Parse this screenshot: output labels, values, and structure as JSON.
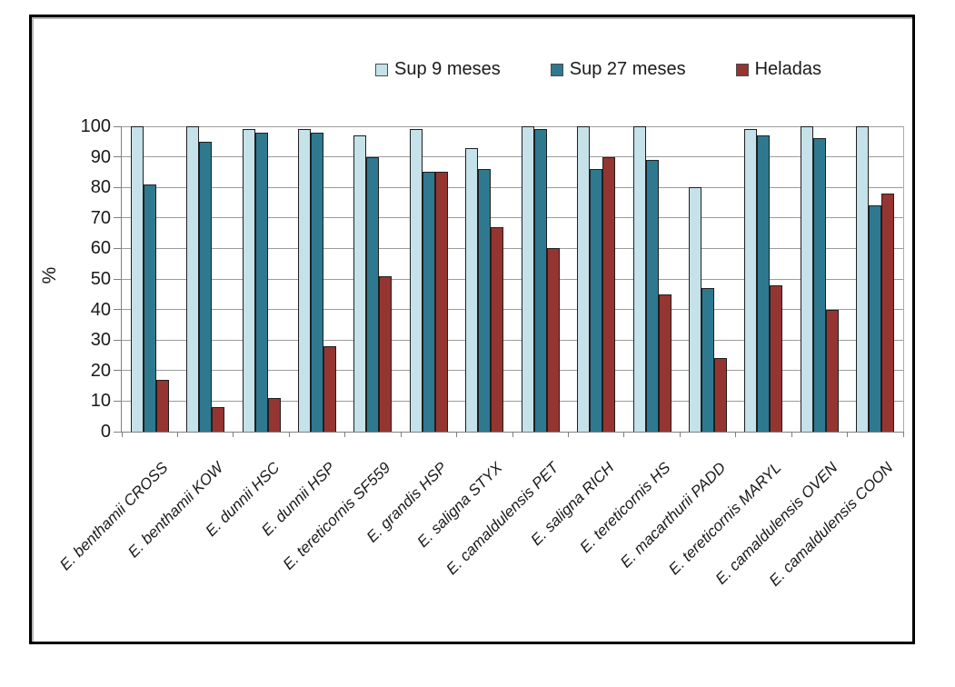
{
  "chart_data": {
    "type": "bar",
    "title": "",
    "xlabel": "",
    "ylabel": "%",
    "ylim": [
      0,
      100
    ],
    "yticks": [
      0,
      10,
      20,
      30,
      40,
      50,
      60,
      70,
      80,
      90,
      100
    ],
    "grid": true,
    "legend_position": "top",
    "categories": [
      "E. benthamii CROSS",
      "E. benthamii KOW",
      "E. dunnii HSC",
      "E. dunnii HSP",
      "E. tereticornis SF559",
      "E. grandis HSP",
      "E. saligna STYX",
      "E. camaldulensis PET",
      "E. saligna RICH",
      "E. tereticornis HS",
      "E. macarthurii PADD",
      "E. tereticornis MARYL",
      "E. camaldulensis OVEN",
      "E. camaldulensis COON"
    ],
    "series": [
      {
        "name": "Sup 9 meses",
        "color": "#c5e1e9",
        "values": [
          100,
          100,
          99,
          99,
          97,
          99,
          93,
          100,
          100,
          100,
          80,
          99,
          100,
          100
        ]
      },
      {
        "name": "Sup 27 meses",
        "color": "#2e798f",
        "values": [
          81,
          95,
          98,
          98,
          90,
          85,
          86,
          99,
          86,
          89,
          47,
          97,
          96,
          74
        ]
      },
      {
        "name": "Heladas",
        "color": "#953531",
        "values": [
          17,
          8,
          11,
          28,
          51,
          85,
          67,
          60,
          90,
          45,
          24,
          48,
          40,
          78
        ]
      }
    ]
  },
  "colors": {
    "bar_border": "#1f1f1f",
    "gridline": "#9c9c9c",
    "axis": "#7f7f7f",
    "frame_border": "#000000",
    "text": "#1a1a1a",
    "background": "#ffffff"
  }
}
